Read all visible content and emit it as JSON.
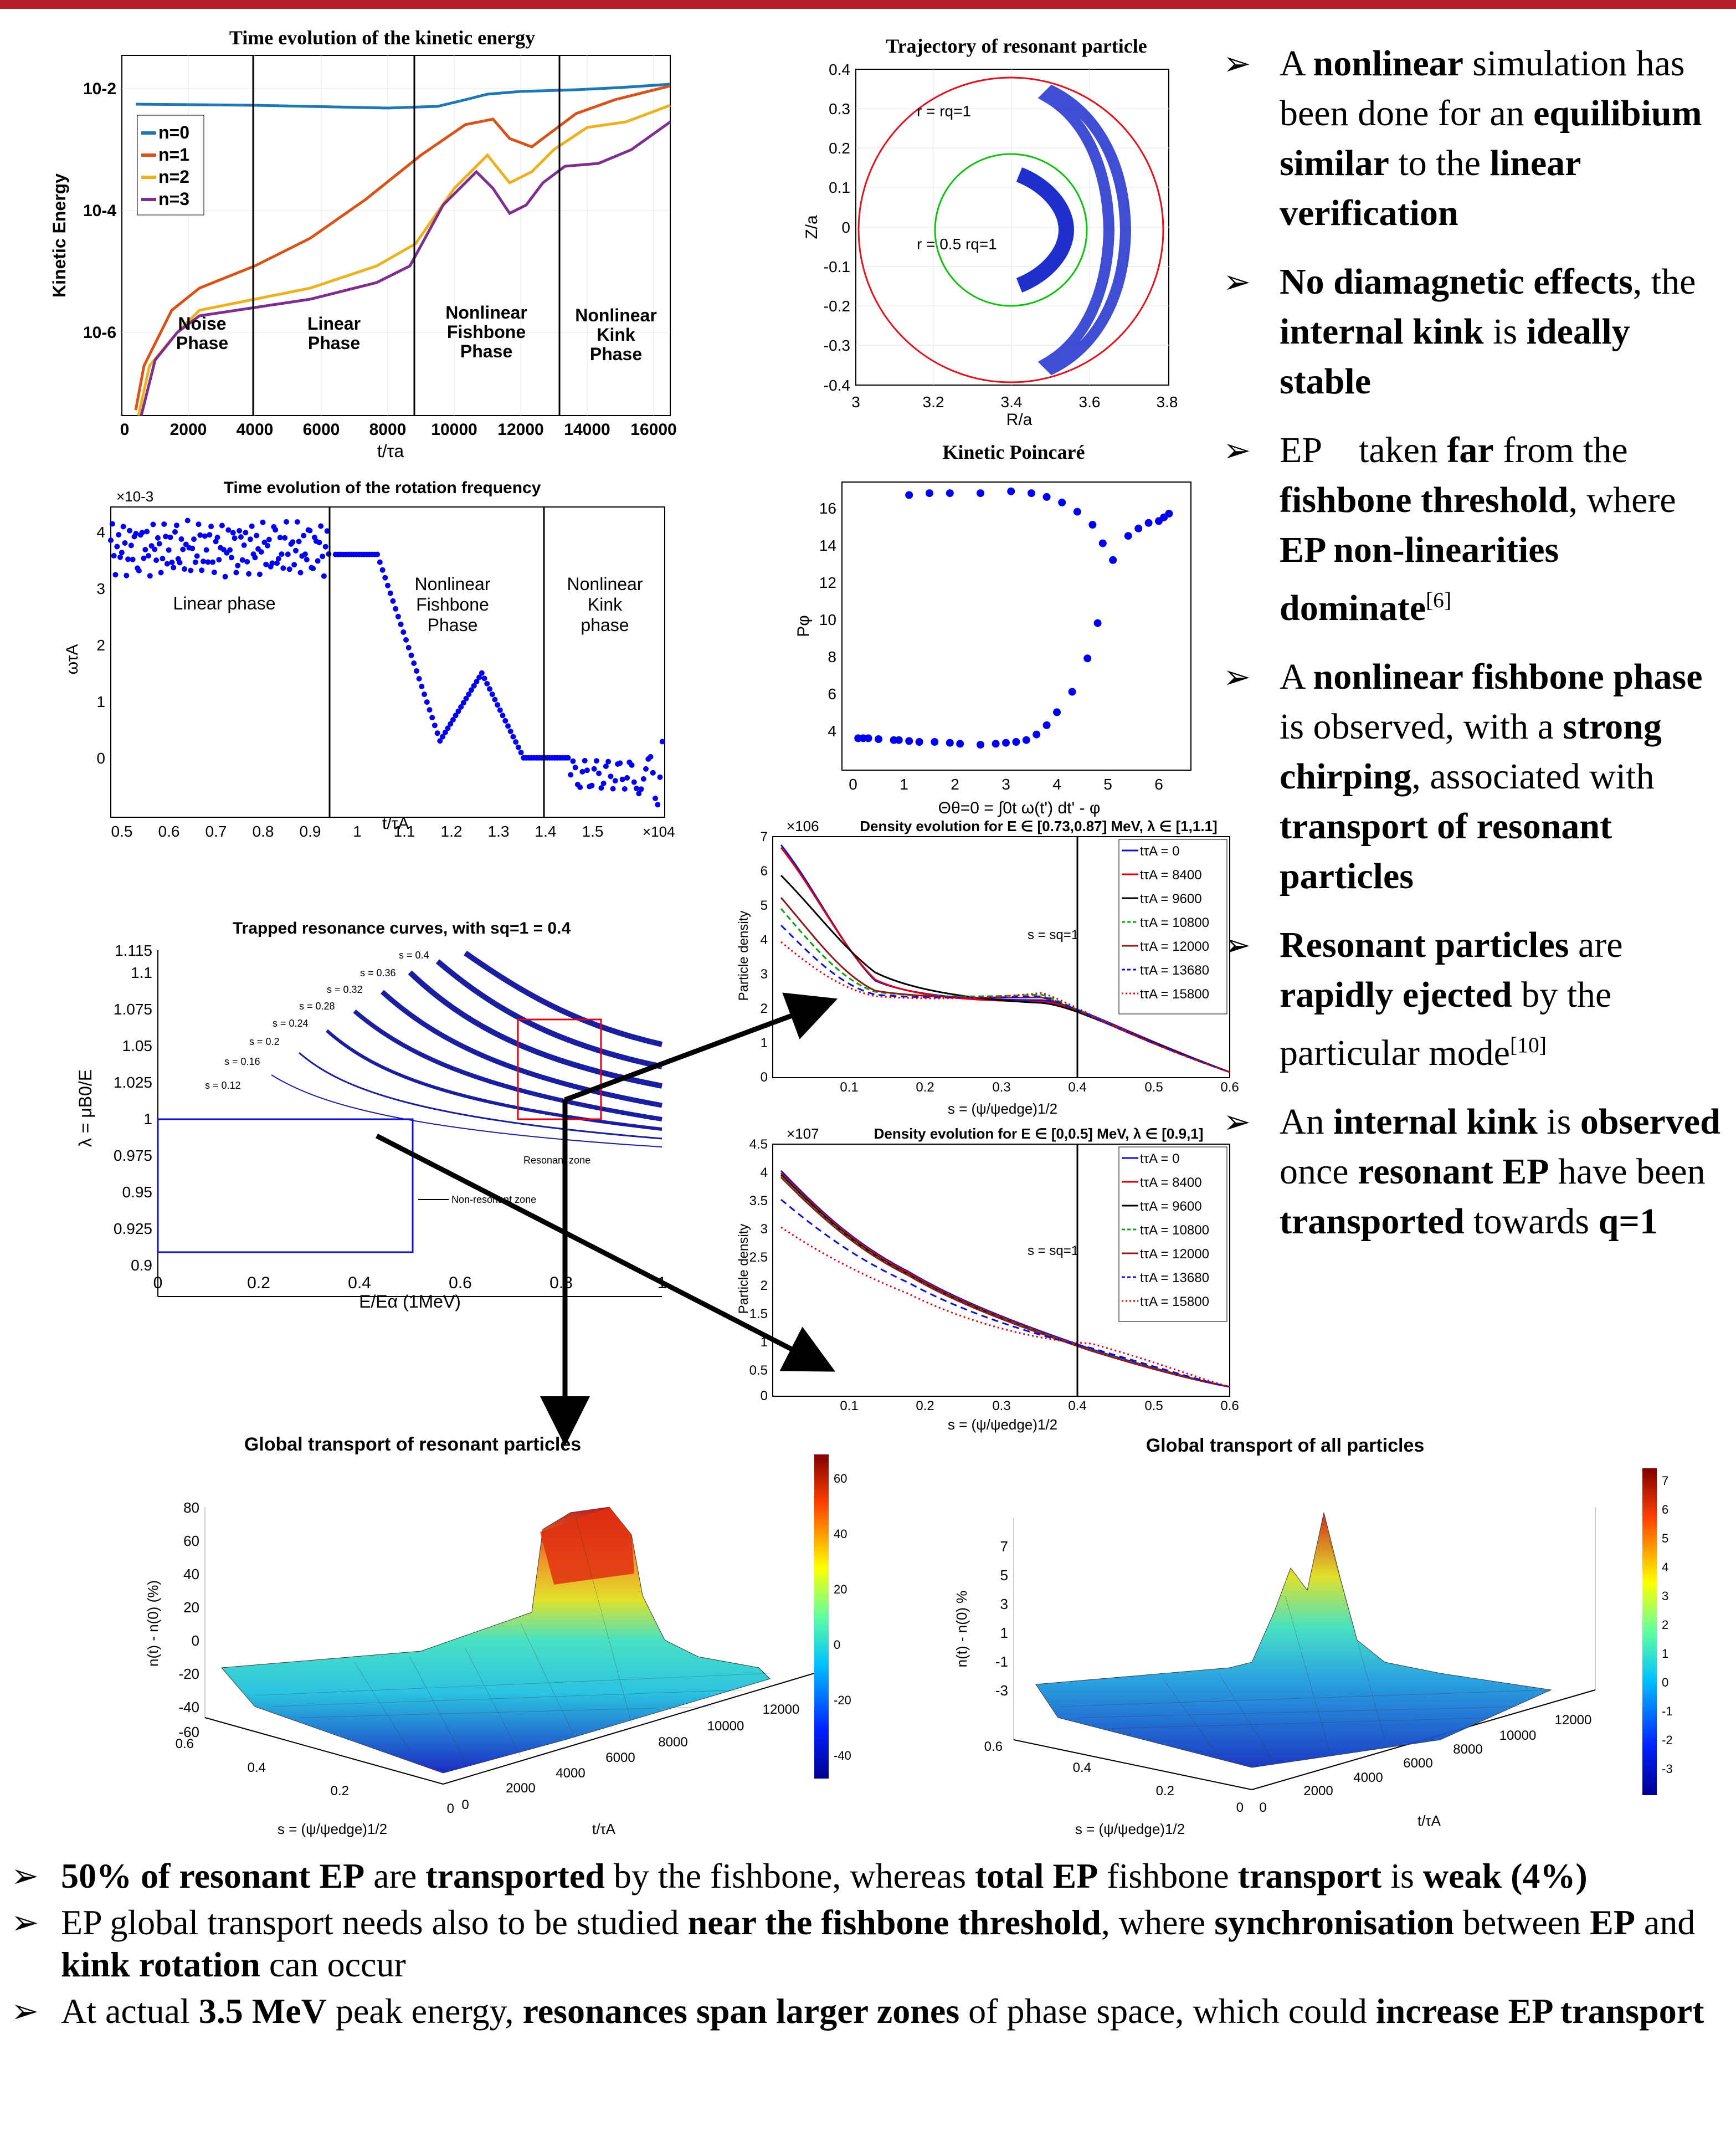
{
  "kinetic_energy": {
    "title": "Time evolution of the kinetic energy",
    "ylabel": "Kinetic Energy",
    "xlabel": "t/τa",
    "yticks": [
      "10-2",
      "10-4",
      "10-6"
    ],
    "xticks": [
      "0",
      "2000",
      "4000",
      "6000",
      "8000",
      "10000",
      "12000",
      "14000",
      "16000"
    ],
    "legend": [
      "n=0",
      "n=1",
      "n=2",
      "n=3"
    ],
    "phases": [
      {
        "l1": "Noise",
        "l2": "Phase",
        "l3": ""
      },
      {
        "l1": "Linear",
        "l2": "Phase",
        "l3": ""
      },
      {
        "l1": "Nonlinear",
        "l2": "Fishbone",
        "l3": "Phase"
      },
      {
        "l1": "Nonlinear",
        "l2": "Kink",
        "l3": "Phase"
      }
    ]
  },
  "trajectory": {
    "title": "Trajectory of resonant particle",
    "ylabel": "Z/a",
    "xlabel": "R/a",
    "yticks": [
      "0.4",
      "0.3",
      "0.2",
      "0.1",
      "0",
      "-0.1",
      "-0.2",
      "-0.3",
      "-0.4"
    ],
    "xticks": [
      "3",
      "3.2",
      "3.4",
      "3.6",
      "3.8"
    ],
    "label_outer": "r = rq=1",
    "label_inner": "r = 0.5 rq=1"
  },
  "rotation": {
    "title": "Time evolution of the rotation frequency",
    "exponent": "×10-3",
    "xexponent": "×104",
    "ylabel": "ωτA",
    "xlabel": "t/τA",
    "yticks": [
      "4",
      "3",
      "2",
      "1",
      "0"
    ],
    "xticks": [
      "0.5",
      "0.6",
      "0.7",
      "0.8",
      "0.9",
      "1",
      "1.1",
      "1.2",
      "1.3",
      "1.4",
      "1.5"
    ],
    "phase1": "Linear phase",
    "phase2": {
      "l1": "Nonlinear",
      "l2": "Fishbone",
      "l3": "Phase"
    },
    "phase3": {
      "l1": "Nonlinear",
      "l2": "Kink",
      "l3": "phase"
    }
  },
  "poincare": {
    "title": "Kinetic Poincaré",
    "ylabel": "Pφ",
    "xlabel": "Θθ=0 = ∫0t ω(t') dt' - φ",
    "yticks": [
      "16",
      "14",
      "12",
      "10",
      "8",
      "6",
      "4"
    ],
    "xticks": [
      "0",
      "1",
      "2",
      "3",
      "4",
      "5",
      "6"
    ]
  },
  "density1": {
    "title": "Density evolution for E ∈ [0.73,0.87] MeV, λ ∈ [1,1.1]",
    "exponent": "×106",
    "ylabel": "Particle density",
    "xlabel": "s = (ψ/ψedge)1/2",
    "yticks": [
      "7",
      "6",
      "5",
      "4",
      "3",
      "2",
      "1",
      "0"
    ],
    "xticks": [
      "0.1",
      "0.2",
      "0.3",
      "0.4",
      "0.5",
      "0.6"
    ],
    "marker": "s = sq=1",
    "legend": [
      "tτA = 0",
      "tτA = 8400",
      "tτA = 9600",
      "tτA = 10800",
      "tτA = 12000",
      "tτA = 13680",
      "tτA = 15800"
    ]
  },
  "density2": {
    "title": "Density evolution for E ∈ [0,0.5] MeV, λ ∈ [0.9,1]",
    "exponent": "×107",
    "ylabel": "Particle density",
    "xlabel": "s = (ψ/ψedge)1/2",
    "yticks": [
      "4.5",
      "4",
      "3.5",
      "3",
      "2.5",
      "2",
      "1.5",
      "1",
      "0.5",
      "0"
    ],
    "xticks": [
      "0.1",
      "0.2",
      "0.3",
      "0.4",
      "0.5",
      "0.6"
    ],
    "marker": "s = sq=1",
    "legend": [
      "tτA = 0",
      "tτA = 8400",
      "tτA = 9600",
      "tτA = 10800",
      "tτA = 12000",
      "tτA = 13680",
      "tτA = 15800"
    ]
  },
  "resonance": {
    "title": "Trapped resonance curves, with sq=1 = 0.4",
    "ylabel": "λ = μB0/E",
    "xlabel": "E/Eα (1MeV)",
    "yticks": [
      "1.115",
      "1.1",
      "1.075",
      "1.05",
      "1.025",
      "1",
      "0.975",
      "0.95",
      "0.925",
      "0.9"
    ],
    "xticks": [
      "0",
      "0.2",
      "0.4",
      "0.6",
      "0.8",
      "1"
    ],
    "curve_labels": [
      "s = 0.12",
      "s = 0.16",
      "s = 0.2",
      "s = 0.24",
      "s = 0.28",
      "s = 0.32",
      "s = 0.36",
      "s = 0.4"
    ],
    "resonant_zone": "Resonant zone",
    "non_resonant_zone": "Non-resonant zone"
  },
  "global_resonant": {
    "title": "Global transport of resonant particles",
    "zlabel": "n(t) - n(0) (%)",
    "zticks": [
      "80",
      "60",
      "40",
      "20",
      "0",
      "-20",
      "-40",
      "-60"
    ],
    "sticks": [
      "0.6",
      "0.4",
      "0.2",
      "0"
    ],
    "tticks": [
      "0",
      "2000",
      "4000",
      "6000",
      "8000",
      "10000",
      "12000"
    ],
    "slabel": "s = (ψ/ψedge)1/2",
    "tlabel": "t/τA",
    "colorbar": [
      "60",
      "40",
      "20",
      "0",
      "-20",
      "-40"
    ]
  },
  "global_all": {
    "title": "Global transport of all particles",
    "zlabel": "n(t) - n(0) %",
    "zticks": [
      "7",
      "5",
      "3",
      "1",
      "-1",
      "-3"
    ],
    "sticks": [
      "0.6",
      "0.4",
      "0.2",
      "0"
    ],
    "tticks": [
      "0",
      "2000",
      "4000",
      "6000",
      "8000",
      "10000",
      "12000"
    ],
    "slabel": "s = (ψ/ψedge)1/2",
    "tlabel": "t/τA",
    "colorbar": [
      "7",
      "6",
      "5",
      "4",
      "3",
      "2",
      "1",
      "0",
      "-1",
      "-2",
      "-3"
    ]
  },
  "colors": {
    "n0": "#1f77b4",
    "n1": "#d95319",
    "n2": "#edb120",
    "n3": "#7e2f8e",
    "accent_bar": "#b3202a",
    "points": "#0000ee"
  }
}
